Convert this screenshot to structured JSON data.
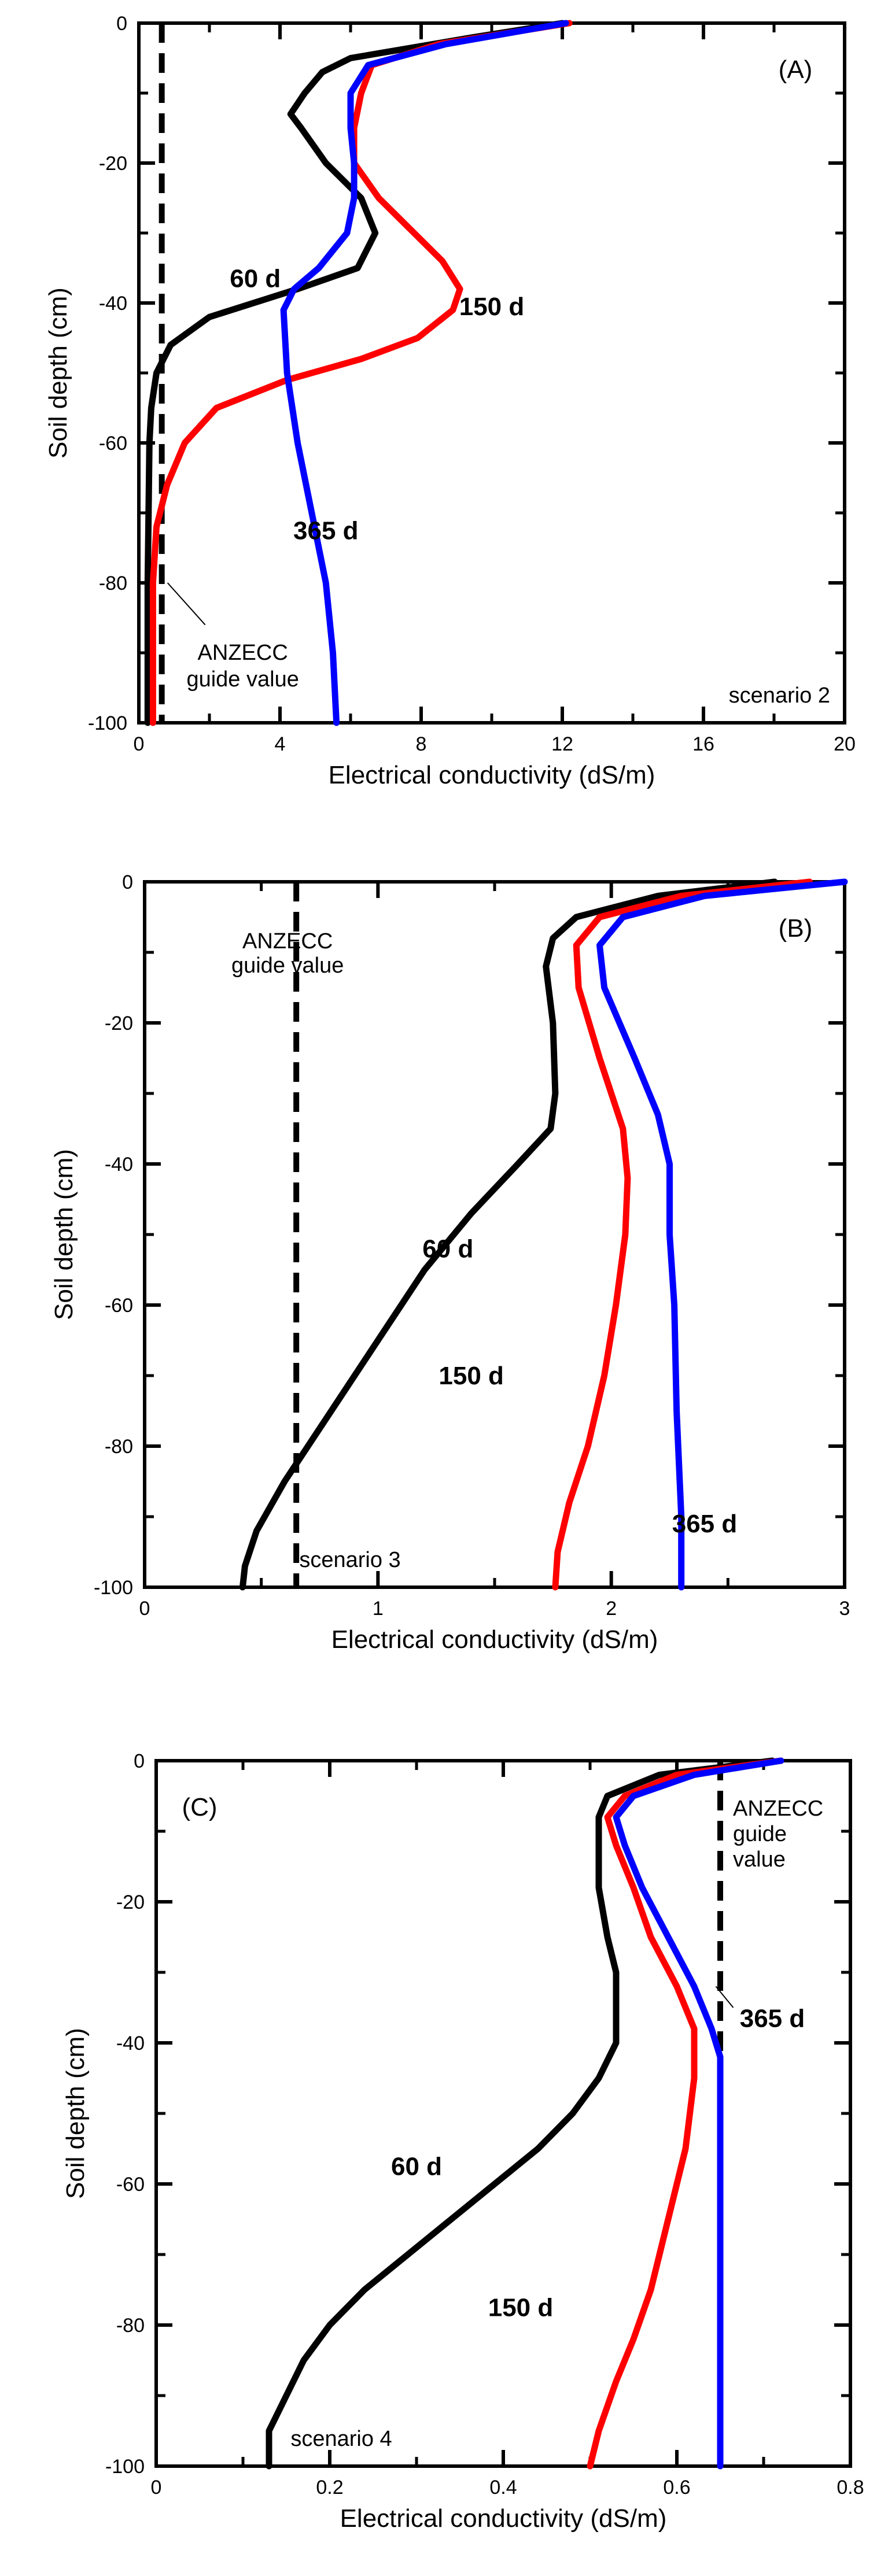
{
  "colors": {
    "60 d": "#000000",
    "150 d": "#ff0000",
    "365 d": "#0000ff",
    "guide": "#000000"
  },
  "chart_data": [
    {
      "type": "line",
      "panel": "(A)",
      "scenario": "scenario 2",
      "xlabel": "Electrical conductivity (dS/m)",
      "ylabel": "Soil depth (cm)",
      "xlim": [
        0,
        20
      ],
      "ylim": [
        -100,
        0
      ],
      "xticks": [
        0,
        4,
        8,
        12,
        16,
        20
      ],
      "yticks": [
        0,
        -20,
        -40,
        -60,
        -80,
        -100
      ],
      "guide_value": 0.65,
      "guide_label": [
        "ANZECC",
        "guide value"
      ],
      "series": [
        {
          "name": "60 d",
          "points": [
            [
              12.0,
              0
            ],
            [
              9.5,
              -2
            ],
            [
              6.0,
              -5
            ],
            [
              5.2,
              -7
            ],
            [
              4.7,
              -10
            ],
            [
              4.3,
              -13
            ],
            [
              4.6,
              -15
            ],
            [
              5.3,
              -20
            ],
            [
              6.3,
              -25
            ],
            [
              6.7,
              -30
            ],
            [
              6.2,
              -35
            ],
            [
              4.5,
              -38
            ],
            [
              2.0,
              -42
            ],
            [
              0.9,
              -46
            ],
            [
              0.5,
              -50
            ],
            [
              0.35,
              -55
            ],
            [
              0.3,
              -60
            ],
            [
              0.25,
              -80
            ],
            [
              0.25,
              -100
            ]
          ]
        },
        {
          "name": "150 d",
          "points": [
            [
              12.2,
              0
            ],
            [
              8.5,
              -3
            ],
            [
              6.6,
              -6
            ],
            [
              6.3,
              -10
            ],
            [
              6.1,
              -15
            ],
            [
              6.1,
              -20
            ],
            [
              6.8,
              -25
            ],
            [
              7.8,
              -30
            ],
            [
              8.6,
              -34
            ],
            [
              9.1,
              -38
            ],
            [
              8.9,
              -41
            ],
            [
              7.9,
              -45
            ],
            [
              6.3,
              -48
            ],
            [
              4.2,
              -51
            ],
            [
              2.2,
              -55
            ],
            [
              1.3,
              -60
            ],
            [
              0.8,
              -66
            ],
            [
              0.5,
              -72
            ],
            [
              0.4,
              -80
            ],
            [
              0.4,
              -100
            ]
          ]
        },
        {
          "name": "365 d",
          "points": [
            [
              12.1,
              0
            ],
            [
              8.7,
              -3
            ],
            [
              6.5,
              -6
            ],
            [
              6.0,
              -10
            ],
            [
              6.0,
              -15
            ],
            [
              6.1,
              -20
            ],
            [
              6.1,
              -25
            ],
            [
              5.9,
              -30
            ],
            [
              5.1,
              -35
            ],
            [
              4.4,
              -38
            ],
            [
              4.1,
              -41
            ],
            [
              4.2,
              -50
            ],
            [
              4.5,
              -60
            ],
            [
              4.9,
              -70
            ],
            [
              5.3,
              -80
            ],
            [
              5.5,
              -90
            ],
            [
              5.6,
              -100
            ]
          ]
        }
      ],
      "labels": [
        {
          "series": "60 d",
          "text": "60 d",
          "at": [
            3.3,
            -36.5
          ]
        },
        {
          "series": "150 d",
          "text": "150 d",
          "at": [
            10.0,
            -40.5
          ]
        },
        {
          "series": "365 d",
          "text": "365 d",
          "at": [
            5.3,
            -72.5
          ]
        }
      ]
    },
    {
      "type": "line",
      "panel": "(B)",
      "scenario": "scenario 3",
      "xlabel": "Electrical conductivity (dS/m)",
      "ylabel": "Soil depth (cm)",
      "xlim": [
        0,
        3
      ],
      "ylim": [
        -100,
        0
      ],
      "xticks": [
        0,
        1,
        2,
        3
      ],
      "yticks": [
        0,
        -20,
        -40,
        -60,
        -80,
        -100
      ],
      "guide_value": 0.65,
      "guide_label": [
        "ANZECC",
        "guide value"
      ],
      "series": [
        {
          "name": "60 d",
          "points": [
            [
              2.7,
              0
            ],
            [
              2.2,
              -2
            ],
            [
              1.85,
              -5
            ],
            [
              1.75,
              -8
            ],
            [
              1.72,
              -12
            ],
            [
              1.75,
              -20
            ],
            [
              1.76,
              -30
            ],
            [
              1.74,
              -35
            ],
            [
              1.6,
              -40
            ],
            [
              1.4,
              -47
            ],
            [
              1.2,
              -55
            ],
            [
              1.0,
              -65
            ],
            [
              0.8,
              -75
            ],
            [
              0.6,
              -85
            ],
            [
              0.48,
              -92
            ],
            [
              0.43,
              -97
            ],
            [
              0.42,
              -100
            ]
          ]
        },
        {
          "name": "150 d",
          "points": [
            [
              2.85,
              0
            ],
            [
              2.3,
              -2
            ],
            [
              1.95,
              -5
            ],
            [
              1.85,
              -9
            ],
            [
              1.86,
              -15
            ],
            [
              1.95,
              -25
            ],
            [
              2.05,
              -35
            ],
            [
              2.07,
              -42
            ],
            [
              2.06,
              -50
            ],
            [
              2.02,
              -60
            ],
            [
              1.97,
              -70
            ],
            [
              1.9,
              -80
            ],
            [
              1.82,
              -88
            ],
            [
              1.77,
              -95
            ],
            [
              1.76,
              -100
            ]
          ]
        },
        {
          "name": "365 d",
          "points": [
            [
              3.0,
              0
            ],
            [
              2.4,
              -2
            ],
            [
              2.05,
              -5
            ],
            [
              1.95,
              -9
            ],
            [
              1.97,
              -15
            ],
            [
              2.1,
              -25
            ],
            [
              2.2,
              -33
            ],
            [
              2.25,
              -40
            ],
            [
              2.25,
              -50
            ],
            [
              2.27,
              -60
            ],
            [
              2.28,
              -75
            ],
            [
              2.3,
              -90
            ],
            [
              2.3,
              -100
            ]
          ]
        }
      ],
      "labels": [
        {
          "series": "60 d",
          "text": "60 d",
          "at": [
            1.3,
            -52
          ]
        },
        {
          "series": "150 d",
          "text": "150 d",
          "at": [
            1.4,
            -70
          ]
        },
        {
          "series": "365 d",
          "text": "365 d",
          "at": [
            2.4,
            -91
          ]
        }
      ]
    },
    {
      "type": "line",
      "panel": "(C)",
      "scenario": "scenario 4",
      "xlabel": "Electrical conductivity (dS/m)",
      "ylabel": "Soil depth (cm)",
      "xlim": [
        0,
        0.8
      ],
      "ylim": [
        -100,
        0
      ],
      "xticks": [
        0,
        0.2,
        0.4,
        0.6,
        0.8
      ],
      "yticks": [
        0,
        -20,
        -40,
        -60,
        -80,
        -100
      ],
      "guide_value": 0.65,
      "guide_label": [
        "ANZECC",
        "guide",
        "value"
      ],
      "series": [
        {
          "name": "60 d",
          "points": [
            [
              0.71,
              0
            ],
            [
              0.58,
              -2
            ],
            [
              0.52,
              -5
            ],
            [
              0.51,
              -8
            ],
            [
              0.51,
              -12
            ],
            [
              0.51,
              -18
            ],
            [
              0.52,
              -25
            ],
            [
              0.53,
              -30
            ],
            [
              0.53,
              -40
            ],
            [
              0.51,
              -45
            ],
            [
              0.48,
              -50
            ],
            [
              0.44,
              -55
            ],
            [
              0.39,
              -60
            ],
            [
              0.34,
              -65
            ],
            [
              0.29,
              -70
            ],
            [
              0.24,
              -75
            ],
            [
              0.2,
              -80
            ],
            [
              0.17,
              -85
            ],
            [
              0.15,
              -90
            ],
            [
              0.13,
              -95
            ],
            [
              0.13,
              -100
            ]
          ]
        },
        {
          "name": "150 d",
          "points": [
            [
              0.72,
              0
            ],
            [
              0.6,
              -2
            ],
            [
              0.54,
              -5
            ],
            [
              0.52,
              -8
            ],
            [
              0.53,
              -12
            ],
            [
              0.55,
              -18
            ],
            [
              0.57,
              -25
            ],
            [
              0.6,
              -32
            ],
            [
              0.62,
              -38
            ],
            [
              0.62,
              -45
            ],
            [
              0.61,
              -55
            ],
            [
              0.59,
              -65
            ],
            [
              0.57,
              -75
            ],
            [
              0.55,
              -82
            ],
            [
              0.53,
              -88
            ],
            [
              0.51,
              -95
            ],
            [
              0.5,
              -100
            ]
          ]
        },
        {
          "name": "365 d",
          "points": [
            [
              0.72,
              0
            ],
            [
              0.62,
              -2
            ],
            [
              0.55,
              -5
            ],
            [
              0.53,
              -8
            ],
            [
              0.54,
              -12
            ],
            [
              0.56,
              -18
            ],
            [
              0.59,
              -25
            ],
            [
              0.62,
              -32
            ],
            [
              0.64,
              -38
            ],
            [
              0.65,
              -42
            ],
            [
              0.65,
              -50
            ],
            [
              0.65,
              -60
            ],
            [
              0.65,
              -80
            ],
            [
              0.65,
              -100
            ]
          ]
        }
      ],
      "labels": [
        {
          "series": "60 d",
          "text": "60 d",
          "at": [
            0.3,
            -57.5
          ]
        },
        {
          "series": "150 d",
          "text": "150 d",
          "at": [
            0.42,
            -77.5
          ]
        },
        {
          "series": "365 d",
          "text": "365 d",
          "at": [
            0.71,
            -36.5
          ]
        }
      ]
    }
  ]
}
